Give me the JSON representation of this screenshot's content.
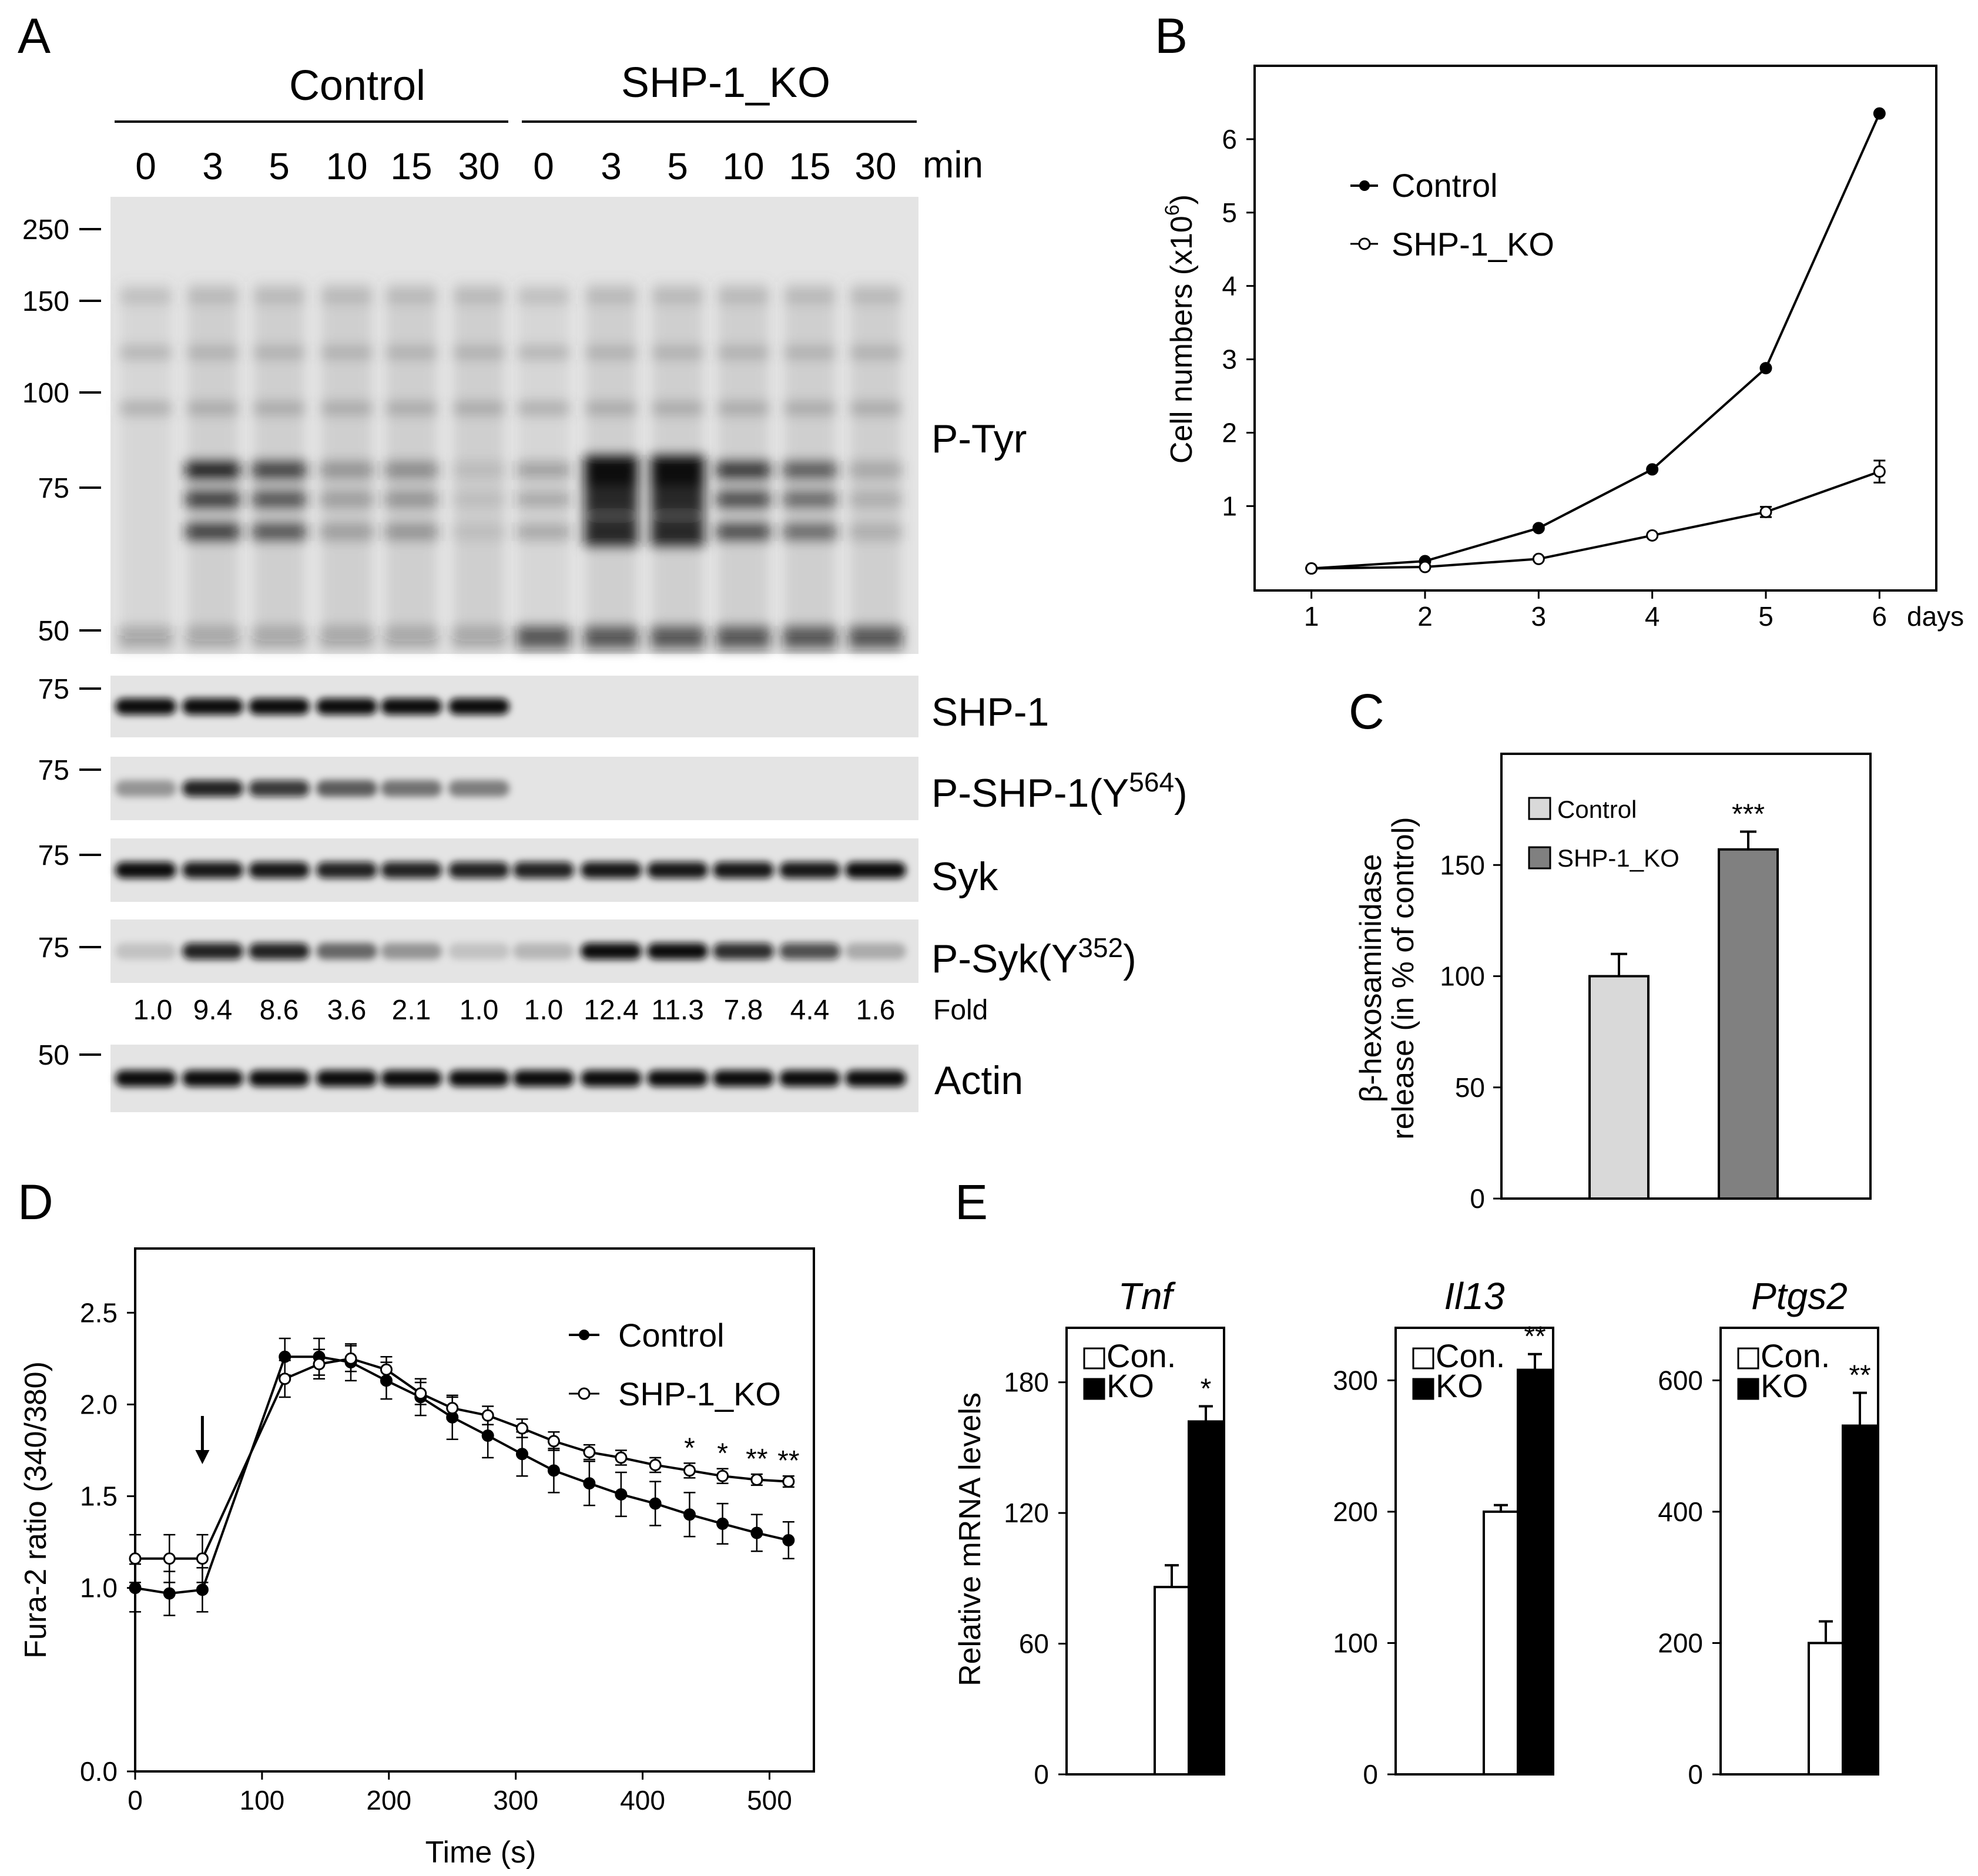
{
  "panel_labels": {
    "a": "A",
    "b": "B",
    "c": "C",
    "d": "D",
    "e": "E"
  },
  "panel_a": {
    "groups": [
      "Control",
      "SHP-1_KO"
    ],
    "timepoints": [
      "0",
      "3",
      "5",
      "10",
      "15",
      "30",
      "0",
      "3",
      "5",
      "10",
      "15",
      "30"
    ],
    "time_unit": "min",
    "mw_markers": {
      "ptyr": [
        "250",
        "150",
        "100",
        "75",
        "50"
      ],
      "shp1": "75",
      "pshp1": "75",
      "syk": "75",
      "psyk": "75",
      "actin": "50"
    },
    "blot_labels": {
      "ptyr": "P-Tyr",
      "shp1": "SHP-1",
      "pshp1_main": "P-SHP-1(Y",
      "pshp1_sup": "564",
      "pshp1_end": ")",
      "syk": "Syk",
      "psyk_main": "P-Syk(Y",
      "psyk_sup": "352",
      "psyk_end": ")",
      "actin": "Actin"
    },
    "fold_values": [
      "1.0",
      "9.4",
      "8.6",
      "3.6",
      "2.1",
      "1.0",
      "1.0",
      "12.4",
      "11.3",
      "7.8",
      "4.4",
      "1.6"
    ],
    "fold_label": "Fold",
    "band_intensity": {
      "shp1": [
        1,
        1,
        1,
        1,
        1,
        1,
        0,
        0,
        0,
        0,
        0,
        0
      ],
      "pshp1": [
        0.35,
        0.9,
        0.8,
        0.6,
        0.5,
        0.45,
        0,
        0,
        0,
        0,
        0,
        0
      ],
      "syk": [
        1,
        0.95,
        0.95,
        0.9,
        0.9,
        0.9,
        0.9,
        0.95,
        0.95,
        0.95,
        0.95,
        1
      ],
      "psyk": [
        0.15,
        0.9,
        0.9,
        0.55,
        0.35,
        0.15,
        0.2,
        1,
        1,
        0.85,
        0.7,
        0.25
      ],
      "actin": [
        1,
        1,
        1,
        1,
        1,
        1,
        1,
        1,
        1,
        1,
        1,
        1
      ],
      "ptyr_75": [
        0,
        0.9,
        0.75,
        0.3,
        0.35,
        0.1,
        0.25,
        1,
        1,
        0.8,
        0.6,
        0.2
      ]
    }
  },
  "chart_data": [
    {
      "panel": "B",
      "type": "line",
      "ylabel": "Cell numbers (x10",
      "ylabel_sup": "6",
      "ylabel_end": ")",
      "xlabel": "days",
      "x": [
        1,
        2,
        3,
        4,
        5,
        6
      ],
      "xticks": [
        "1",
        "2",
        "3",
        "4",
        "5",
        "6"
      ],
      "yticks": [
        "1",
        "2",
        "3",
        "4",
        "5",
        "6"
      ],
      "xlim": [
        0.5,
        6.5
      ],
      "ylim": [
        -0.15,
        7
      ],
      "series": [
        {
          "name": "Control",
          "values": [
            0.15,
            0.25,
            0.7,
            1.5,
            2.88,
            6.35
          ],
          "marker": "filled"
        },
        {
          "name": "SHP-1_KO",
          "values": [
            0.15,
            0.17,
            0.28,
            0.6,
            0.92,
            1.47
          ],
          "errors": [
            0,
            0,
            0,
            0,
            0.07,
            0.15
          ],
          "marker": "open"
        }
      ]
    },
    {
      "panel": "C",
      "type": "bar",
      "ylabel_line1": "β-hexosaminidase",
      "ylabel_line2": "release (in % of control)",
      "categories": [
        "Control",
        "SHP-1_KO"
      ],
      "values": [
        100,
        157
      ],
      "errors": [
        10,
        8
      ],
      "colors": [
        "#d9d9d9",
        "#808080"
      ],
      "significance": [
        "",
        "***"
      ],
      "yticks": [
        "0",
        "50",
        "100",
        "150"
      ],
      "ylim": [
        0,
        200
      ]
    },
    {
      "panel": "D",
      "type": "line",
      "ylabel": "Fura-2 ratio (340/380)",
      "xlabel": "Time (s)",
      "xticks": [
        "0",
        "100",
        "200",
        "300",
        "400",
        "500"
      ],
      "yticks": [
        "0.0",
        "1.0",
        "1.5",
        "2.0",
        "2.5"
      ],
      "xlim": [
        0,
        535
      ],
      "ylim": [
        0,
        2.85
      ],
      "x": [
        0,
        27,
        53,
        118,
        145,
        170,
        198,
        225,
        250,
        278,
        305,
        330,
        358,
        383,
        410,
        437,
        463,
        490,
        515
      ],
      "series": [
        {
          "name": "Control",
          "marker": "filled",
          "values": [
            1.0,
            0.97,
            0.99,
            2.26,
            2.26,
            2.23,
            2.13,
            2.04,
            1.93,
            1.83,
            1.73,
            1.64,
            1.57,
            1.51,
            1.46,
            1.4,
            1.35,
            1.3,
            1.26
          ],
          "errors": [
            0.13,
            0.12,
            0.12,
            0.1,
            0.1,
            0.1,
            0.1,
            0.1,
            0.12,
            0.12,
            0.12,
            0.12,
            0.12,
            0.12,
            0.12,
            0.12,
            0.11,
            0.1,
            0.1
          ]
        },
        {
          "name": "SHP-1_KO",
          "marker": "open",
          "values": [
            1.16,
            1.16,
            1.16,
            2.14,
            2.22,
            2.25,
            2.19,
            2.06,
            1.98,
            1.94,
            1.87,
            1.8,
            1.74,
            1.71,
            1.67,
            1.64,
            1.61,
            1.59,
            1.58
          ],
          "errors": [
            0.13,
            0.13,
            0.13,
            0.1,
            0.08,
            0.07,
            0.07,
            0.06,
            0.06,
            0.05,
            0.05,
            0.05,
            0.04,
            0.04,
            0.04,
            0.04,
            0.04,
            0.03,
            0.03
          ]
        }
      ],
      "arrow_x": 53,
      "significance": [
        {
          "x": 437,
          "label": "*"
        },
        {
          "x": 463,
          "label": "*"
        },
        {
          "x": 490,
          "label": "**"
        },
        {
          "x": 515,
          "label": "**"
        }
      ]
    },
    {
      "panel": "E",
      "type": "bar",
      "ylabel": "Relative mRNA levels",
      "legend": [
        "Con.",
        "KO"
      ],
      "charts": [
        {
          "gene": "Tnf",
          "values": [
            86,
            162
          ],
          "errors": [
            10,
            7
          ],
          "ylim": [
            0,
            205
          ],
          "yticks": [
            "0",
            "60",
            "120",
            "180"
          ],
          "significance": "*"
        },
        {
          "gene": "Il13",
          "values": [
            200,
            308
          ],
          "errors": [
            5,
            12
          ],
          "ylim": [
            0,
            340
          ],
          "yticks": [
            "0",
            "100",
            "200",
            "300"
          ],
          "significance": "**"
        },
        {
          "gene": "Ptgs2",
          "values": [
            200,
            531
          ],
          "errors": [
            33,
            50
          ],
          "ylim": [
            0,
            680
          ],
          "yticks": [
            "0",
            "200",
            "400",
            "600"
          ],
          "significance": "**"
        }
      ]
    }
  ]
}
